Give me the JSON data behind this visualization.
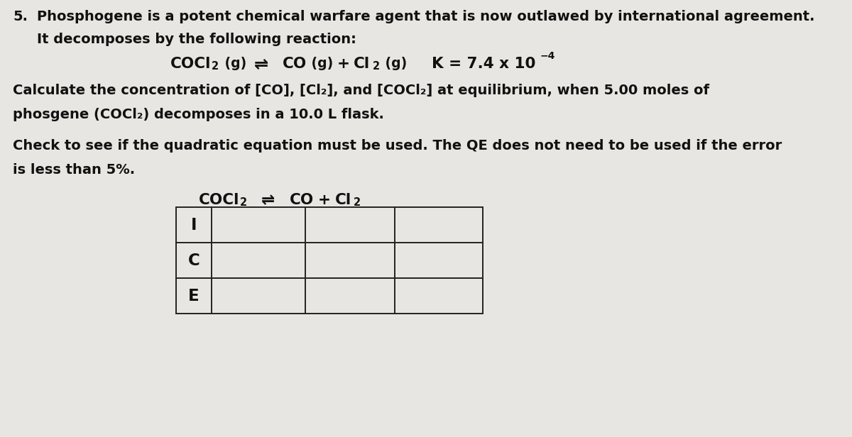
{
  "bg_color": "#e8e6e2",
  "text_color": "#111111",
  "line1": "Phosphogene is a potent chemical warfare agent that is now outlawed by international agreement.",
  "line2": "It decomposes by the following reaction:",
  "calc_line1": "Calculate the concentration of [CO], [Cl₂], and [COCl₂] at equilibrium, when 5.00 moles of",
  "calc_line2": "phosgene (COCl₂) decomposes in a 10.0 L flask.",
  "check_line1": "Check to see if the quadratic equation must be used. The QE does not need to be used if the error",
  "check_line2": "is less than 5%.",
  "table_rows": [
    "I",
    "C",
    "E"
  ],
  "fs_main": 14.0,
  "fs_chem": 15.5,
  "fs_sub": 10.5,
  "fs_sup": 10.0,
  "lw": 1.4,
  "lc": "#222222"
}
